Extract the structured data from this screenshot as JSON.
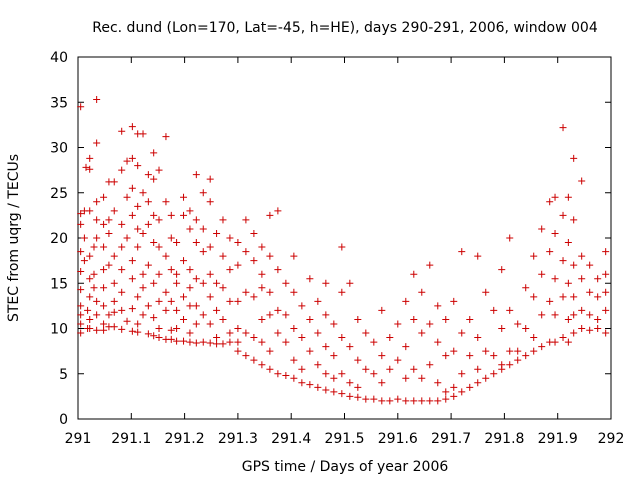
{
  "chart_data": {
    "type": "scatter",
    "title": "Rec. dund (Lon=170, Lat=-45, h=HE), days 290-291, 2006, window 004",
    "xlabel": "GPS time / Days of year 2006",
    "ylabel": "STEC from uqrg / TECUs",
    "xlim": [
      291,
      292
    ],
    "ylim": [
      0,
      40
    ],
    "x_ticks": [
      291,
      291.1,
      291.2,
      291.3,
      291.4,
      291.5,
      291.6,
      291.7,
      291.8,
      291.9,
      292
    ],
    "x_tick_labels": [
      "291",
      "291.1",
      "291.2",
      "291.3",
      "291.4",
      "291.5",
      "291.6",
      "291.7",
      "291.8",
      "291.9",
      "292"
    ],
    "y_ticks": [
      0,
      5,
      10,
      15,
      20,
      25,
      30,
      35,
      40
    ],
    "y_tick_labels": [
      "0",
      "5",
      "10",
      "15",
      "20",
      "25",
      "30",
      "35",
      "40"
    ],
    "marker": "+",
    "marker_color": "#cc0000",
    "grid": false,
    "points": [
      [
        291.005,
        34.5
      ],
      [
        291.005,
        22.7
      ],
      [
        291.005,
        21.5
      ],
      [
        291.005,
        18.5
      ],
      [
        291.005,
        16.3
      ],
      [
        291.005,
        14.3
      ],
      [
        291.005,
        12.5
      ],
      [
        291.005,
        11.5
      ],
      [
        291.005,
        10.5
      ],
      [
        291.005,
        9.5
      ],
      [
        291.012,
        23.0
      ],
      [
        291.012,
        20.0
      ],
      [
        291.012,
        17.5
      ],
      [
        291.015,
        27.8
      ],
      [
        291.018,
        12.0
      ],
      [
        291.018,
        10.0
      ],
      [
        291.022,
        28.8
      ],
      [
        291.022,
        27.6
      ],
      [
        291.022,
        23.0
      ],
      [
        291.022,
        18.0
      ],
      [
        291.022,
        15.5
      ],
      [
        291.022,
        13.5
      ],
      [
        291.022,
        11.0
      ],
      [
        291.022,
        10.0
      ],
      [
        291.03,
        19.0
      ],
      [
        291.03,
        16.0
      ],
      [
        291.03,
        14.5
      ],
      [
        291.035,
        35.3
      ],
      [
        291.035,
        30.5
      ],
      [
        291.035,
        24.0
      ],
      [
        291.035,
        22.0
      ],
      [
        291.035,
        20.0
      ],
      [
        291.035,
        13.0
      ],
      [
        291.035,
        11.5
      ],
      [
        291.035,
        9.8
      ],
      [
        291.048,
        24.5
      ],
      [
        291.048,
        21.5
      ],
      [
        291.048,
        19.0
      ],
      [
        291.048,
        16.5
      ],
      [
        291.048,
        14.5
      ],
      [
        291.048,
        12.5
      ],
      [
        291.048,
        10.5
      ],
      [
        291.048,
        9.8
      ],
      [
        291.058,
        26.2
      ],
      [
        291.058,
        22.0
      ],
      [
        291.058,
        20.5
      ],
      [
        291.058,
        17.0
      ],
      [
        291.058,
        11.5
      ],
      [
        291.058,
        10.2
      ],
      [
        291.068,
        26.2
      ],
      [
        291.068,
        23.0
      ],
      [
        291.068,
        18.0
      ],
      [
        291.068,
        15.0
      ],
      [
        291.068,
        13.0
      ],
      [
        291.068,
        11.8
      ],
      [
        291.068,
        10.2
      ],
      [
        291.082,
        31.8
      ],
      [
        291.082,
        27.5
      ],
      [
        291.082,
        21.5
      ],
      [
        291.082,
        19.0
      ],
      [
        291.082,
        16.5
      ],
      [
        291.082,
        14.0
      ],
      [
        291.082,
        12.0
      ],
      [
        291.082,
        9.9
      ],
      [
        291.092,
        28.5
      ],
      [
        291.092,
        24.5
      ],
      [
        291.092,
        20.0
      ],
      [
        291.092,
        10.8
      ],
      [
        291.102,
        32.3
      ],
      [
        291.102,
        28.8
      ],
      [
        291.102,
        25.5
      ],
      [
        291.102,
        22.5
      ],
      [
        291.102,
        17.5
      ],
      [
        291.102,
        15.5
      ],
      [
        291.102,
        12.2
      ],
      [
        291.102,
        9.7
      ],
      [
        291.112,
        31.5
      ],
      [
        291.112,
        28.0
      ],
      [
        291.112,
        23.5
      ],
      [
        291.112,
        21.0
      ],
      [
        291.112,
        19.0
      ],
      [
        291.112,
        13.5
      ],
      [
        291.112,
        10.5
      ],
      [
        291.112,
        9.6
      ],
      [
        291.122,
        31.5
      ],
      [
        291.122,
        25.0
      ],
      [
        291.122,
        20.5
      ],
      [
        291.122,
        16.0
      ],
      [
        291.122,
        14.5
      ],
      [
        291.122,
        11.5
      ],
      [
        291.132,
        27.0
      ],
      [
        291.132,
        24.0
      ],
      [
        291.132,
        21.5
      ],
      [
        291.132,
        17.0
      ],
      [
        291.132,
        12.5
      ],
      [
        291.132,
        9.4
      ],
      [
        291.142,
        29.4
      ],
      [
        291.142,
        26.5
      ],
      [
        291.142,
        22.5
      ],
      [
        291.142,
        19.5
      ],
      [
        291.142,
        15.0
      ],
      [
        291.142,
        11.2
      ],
      [
        291.142,
        9.2
      ],
      [
        291.152,
        27.5
      ],
      [
        291.152,
        22.0
      ],
      [
        291.152,
        19.0
      ],
      [
        291.152,
        16.0
      ],
      [
        291.152,
        13.0
      ],
      [
        291.152,
        10.0
      ],
      [
        291.152,
        9.0
      ],
      [
        291.165,
        31.2
      ],
      [
        291.165,
        24.0
      ],
      [
        291.165,
        18.0
      ],
      [
        291.165,
        14.0
      ],
      [
        291.165,
        12.0
      ],
      [
        291.165,
        8.8
      ],
      [
        291.175,
        22.5
      ],
      [
        291.175,
        20.0
      ],
      [
        291.175,
        16.5
      ],
      [
        291.175,
        13.0
      ],
      [
        291.175,
        9.8
      ],
      [
        291.175,
        8.8
      ],
      [
        291.185,
        19.5
      ],
      [
        291.185,
        16.0
      ],
      [
        291.185,
        15.0
      ],
      [
        291.185,
        12.0
      ],
      [
        291.185,
        10.0
      ],
      [
        291.185,
        8.6
      ],
      [
        291.198,
        24.5
      ],
      [
        291.198,
        22.5
      ],
      [
        291.198,
        17.5
      ],
      [
        291.198,
        13.5
      ],
      [
        291.198,
        11.0
      ],
      [
        291.198,
        8.6
      ],
      [
        291.21,
        23.0
      ],
      [
        291.21,
        21.0
      ],
      [
        291.21,
        16.5
      ],
      [
        291.21,
        14.5
      ],
      [
        291.21,
        12.5
      ],
      [
        291.21,
        9.5
      ],
      [
        291.21,
        8.5
      ],
      [
        291.222,
        27.0
      ],
      [
        291.222,
        22.0
      ],
      [
        291.222,
        19.5
      ],
      [
        291.222,
        15.5
      ],
      [
        291.222,
        12.5
      ],
      [
        291.222,
        10.5
      ],
      [
        291.222,
        8.4
      ],
      [
        291.235,
        25.0
      ],
      [
        291.235,
        21.0
      ],
      [
        291.235,
        18.5
      ],
      [
        291.235,
        15.0
      ],
      [
        291.235,
        11.5
      ],
      [
        291.235,
        8.5
      ],
      [
        291.248,
        26.5
      ],
      [
        291.248,
        24.0
      ],
      [
        291.248,
        19.0
      ],
      [
        291.248,
        16.0
      ],
      [
        291.248,
        13.5
      ],
      [
        291.248,
        10.5
      ],
      [
        291.248,
        8.4
      ],
      [
        291.26,
        20.5
      ],
      [
        291.26,
        15.0
      ],
      [
        291.26,
        12.0
      ],
      [
        291.26,
        9.0
      ],
      [
        291.26,
        8.3
      ],
      [
        291.272,
        22.0
      ],
      [
        291.272,
        18.0
      ],
      [
        291.272,
        14.5
      ],
      [
        291.272,
        11.0
      ],
      [
        291.272,
        8.3
      ],
      [
        291.285,
        20.0
      ],
      [
        291.285,
        16.5
      ],
      [
        291.285,
        13.0
      ],
      [
        291.285,
        9.5
      ],
      [
        291.285,
        8.5
      ],
      [
        291.3,
        19.5
      ],
      [
        291.3,
        17.0
      ],
      [
        291.3,
        13.0
      ],
      [
        291.3,
        10.0
      ],
      [
        291.3,
        8.5
      ],
      [
        291.3,
        7.5
      ],
      [
        291.315,
        22.0
      ],
      [
        291.315,
        18.5
      ],
      [
        291.315,
        14.0
      ],
      [
        291.315,
        9.5
      ],
      [
        291.315,
        7.0
      ],
      [
        291.33,
        20.5
      ],
      [
        291.33,
        17.5
      ],
      [
        291.33,
        13.5
      ],
      [
        291.33,
        9.0
      ],
      [
        291.33,
        6.5
      ],
      [
        291.345,
        19.0
      ],
      [
        291.345,
        16.0
      ],
      [
        291.345,
        14.5
      ],
      [
        291.345,
        11.0
      ],
      [
        291.345,
        8.5
      ],
      [
        291.345,
        6.0
      ],
      [
        291.36,
        22.5
      ],
      [
        291.36,
        18.0
      ],
      [
        291.36,
        14.0
      ],
      [
        291.36,
        11.5
      ],
      [
        291.36,
        7.5
      ],
      [
        291.36,
        5.5
      ],
      [
        291.375,
        23.0
      ],
      [
        291.375,
        16.5
      ],
      [
        291.375,
        12.0
      ],
      [
        291.375,
        9.5
      ],
      [
        291.375,
        5.0
      ],
      [
        291.39,
        15.0
      ],
      [
        291.39,
        11.5
      ],
      [
        291.39,
        8.5
      ],
      [
        291.39,
        4.8
      ],
      [
        291.405,
        18.0
      ],
      [
        291.405,
        14.0
      ],
      [
        291.405,
        10.0
      ],
      [
        291.405,
        6.5
      ],
      [
        291.405,
        4.5
      ],
      [
        291.42,
        12.5
      ],
      [
        291.42,
        9.0
      ],
      [
        291.42,
        5.5
      ],
      [
        291.42,
        4.0
      ],
      [
        291.435,
        15.5
      ],
      [
        291.435,
        11.0
      ],
      [
        291.435,
        7.5
      ],
      [
        291.435,
        3.8
      ],
      [
        291.45,
        13.0
      ],
      [
        291.45,
        9.5
      ],
      [
        291.45,
        6.0
      ],
      [
        291.45,
        3.5
      ],
      [
        291.465,
        15.0
      ],
      [
        291.465,
        11.5
      ],
      [
        291.465,
        8.0
      ],
      [
        291.465,
        5.0
      ],
      [
        291.465,
        3.2
      ],
      [
        291.48,
        10.5
      ],
      [
        291.48,
        7.0
      ],
      [
        291.48,
        4.5
      ],
      [
        291.48,
        3.0
      ],
      [
        291.495,
        19.0
      ],
      [
        291.495,
        14.0
      ],
      [
        291.495,
        9.0
      ],
      [
        291.495,
        5.0
      ],
      [
        291.495,
        2.8
      ],
      [
        291.51,
        15.0
      ],
      [
        291.51,
        8.0
      ],
      [
        291.51,
        4.0
      ],
      [
        291.51,
        2.5
      ],
      [
        291.525,
        11.0
      ],
      [
        291.525,
        6.5
      ],
      [
        291.525,
        3.5
      ],
      [
        291.525,
        2.4
      ],
      [
        291.54,
        9.5
      ],
      [
        291.54,
        5.5
      ],
      [
        291.54,
        2.2
      ],
      [
        291.555,
        8.5
      ],
      [
        291.555,
        5.0
      ],
      [
        291.555,
        2.2
      ],
      [
        291.57,
        12.0
      ],
      [
        291.57,
        7.0
      ],
      [
        291.57,
        4.0
      ],
      [
        291.57,
        2.0
      ],
      [
        291.585,
        9.0
      ],
      [
        291.585,
        5.5
      ],
      [
        291.585,
        2.0
      ],
      [
        291.6,
        10.5
      ],
      [
        291.6,
        6.5
      ],
      [
        291.6,
        2.2
      ],
      [
        291.615,
        13.0
      ],
      [
        291.615,
        8.0
      ],
      [
        291.615,
        4.5
      ],
      [
        291.615,
        2.0
      ],
      [
        291.63,
        16.0
      ],
      [
        291.63,
        11.0
      ],
      [
        291.63,
        5.5
      ],
      [
        291.63,
        2.0
      ],
      [
        291.645,
        14.0
      ],
      [
        291.645,
        9.5
      ],
      [
        291.645,
        4.5
      ],
      [
        291.645,
        2.0
      ],
      [
        291.66,
        17.0
      ],
      [
        291.66,
        10.5
      ],
      [
        291.66,
        6.0
      ],
      [
        291.66,
        2.0
      ],
      [
        291.675,
        12.5
      ],
      [
        291.675,
        8.5
      ],
      [
        291.675,
        4.0
      ],
      [
        291.675,
        2.0
      ],
      [
        291.69,
        11.0
      ],
      [
        291.69,
        7.0
      ],
      [
        291.69,
        3.0
      ],
      [
        291.69,
        2.2
      ],
      [
        291.705,
        13.0
      ],
      [
        291.705,
        7.5
      ],
      [
        291.705,
        3.5
      ],
      [
        291.705,
        2.5
      ],
      [
        291.72,
        18.5
      ],
      [
        291.72,
        9.5
      ],
      [
        291.72,
        5.0
      ],
      [
        291.72,
        3.0
      ],
      [
        291.735,
        11.0
      ],
      [
        291.735,
        7.0
      ],
      [
        291.735,
        3.5
      ],
      [
        291.75,
        18.0
      ],
      [
        291.75,
        9.0
      ],
      [
        291.75,
        5.5
      ],
      [
        291.75,
        4.0
      ],
      [
        291.765,
        14.0
      ],
      [
        291.765,
        7.5
      ],
      [
        291.765,
        4.5
      ],
      [
        291.78,
        12.0
      ],
      [
        291.78,
        7.0
      ],
      [
        291.78,
        5.0
      ],
      [
        291.795,
        16.5
      ],
      [
        291.795,
        10.0
      ],
      [
        291.795,
        6.0
      ],
      [
        291.795,
        5.5
      ],
      [
        291.81,
        20.0
      ],
      [
        291.81,
        12.0
      ],
      [
        291.81,
        7.5
      ],
      [
        291.81,
        6.0
      ],
      [
        291.825,
        10.5
      ],
      [
        291.825,
        7.5
      ],
      [
        291.825,
        6.5
      ],
      [
        291.84,
        14.5
      ],
      [
        291.84,
        10.0
      ],
      [
        291.84,
        7.0
      ],
      [
        291.855,
        18.0
      ],
      [
        291.855,
        13.5
      ],
      [
        291.855,
        9.0
      ],
      [
        291.855,
        7.5
      ],
      [
        291.87,
        21.0
      ],
      [
        291.87,
        16.0
      ],
      [
        291.87,
        11.5
      ],
      [
        291.87,
        8.0
      ],
      [
        291.885,
        24.0
      ],
      [
        291.885,
        18.5
      ],
      [
        291.885,
        13.0
      ],
      [
        291.885,
        8.5
      ],
      [
        291.895,
        24.5
      ],
      [
        291.895,
        20.5
      ],
      [
        291.895,
        15.5
      ],
      [
        291.895,
        11.5
      ],
      [
        291.895,
        8.5
      ],
      [
        291.91,
        32.2
      ],
      [
        291.91,
        22.5
      ],
      [
        291.91,
        17.5
      ],
      [
        291.91,
        13.5
      ],
      [
        291.91,
        9.0
      ],
      [
        291.92,
        24.5
      ],
      [
        291.92,
        19.5
      ],
      [
        291.92,
        15.0
      ],
      [
        291.92,
        11.0
      ],
      [
        291.92,
        8.5
      ],
      [
        291.93,
        28.8
      ],
      [
        291.93,
        22.0
      ],
      [
        291.93,
        17.0
      ],
      [
        291.93,
        13.5
      ],
      [
        291.93,
        11.5
      ],
      [
        291.93,
        9.5
      ],
      [
        291.945,
        26.3
      ],
      [
        291.945,
        18.0
      ],
      [
        291.945,
        15.5
      ],
      [
        291.945,
        12.0
      ],
      [
        291.945,
        10.0
      ],
      [
        291.96,
        17.0
      ],
      [
        291.96,
        14.0
      ],
      [
        291.96,
        11.5
      ],
      [
        291.96,
        9.8
      ],
      [
        291.975,
        15.5
      ],
      [
        291.975,
        13.5
      ],
      [
        291.975,
        11.0
      ],
      [
        291.975,
        10.0
      ],
      [
        291.99,
        18.5
      ],
      [
        291.99,
        16.0
      ],
      [
        291.99,
        14.0
      ],
      [
        291.99,
        12.0
      ],
      [
        291.99,
        9.5
      ]
    ]
  }
}
